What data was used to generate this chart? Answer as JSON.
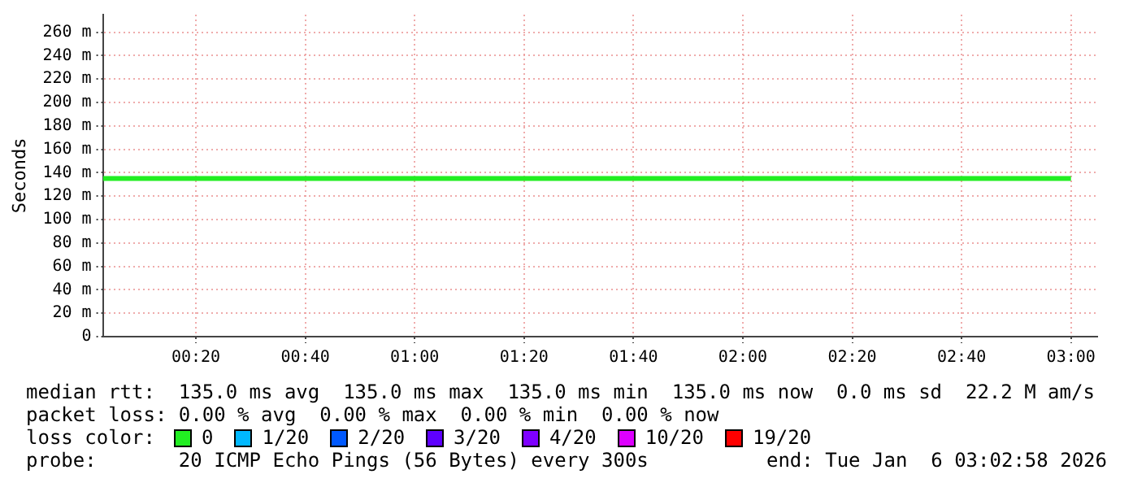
{
  "chart_data": {
    "type": "line",
    "ylabel": "Seconds",
    "x": [
      0.05,
      3.0
    ],
    "xlim": [
      0.05,
      3.08
    ],
    "xticks": [
      {
        "value": 0.3333,
        "label": "00:20"
      },
      {
        "value": 0.6667,
        "label": "00:40"
      },
      {
        "value": 1,
        "label": "01:00"
      },
      {
        "value": 1.3333,
        "label": "01:20"
      },
      {
        "value": 1.6667,
        "label": "01:40"
      },
      {
        "value": 2,
        "label": "02:00"
      },
      {
        "value": 2.3333,
        "label": "02:20"
      },
      {
        "value": 2.6667,
        "label": "02:40"
      },
      {
        "value": 3,
        "label": "03:00"
      }
    ],
    "ylim": [
      0,
      275
    ],
    "yticks": [
      0,
      {
        "value": 20,
        "label": "20 m"
      },
      {
        "value": 40,
        "label": "40 m"
      },
      {
        "value": 60,
        "label": "60 m"
      },
      {
        "value": 80,
        "label": "80 m"
      },
      {
        "value": 100,
        "label": "100 m"
      },
      {
        "value": 120,
        "label": "120 m"
      },
      {
        "value": 140,
        "label": "140 m"
      },
      {
        "value": 160,
        "label": "160 m"
      },
      {
        "value": 180,
        "label": "180 m"
      },
      {
        "value": 200,
        "label": "200 m"
      },
      {
        "value": 220,
        "label": "220 m"
      },
      {
        "value": 240,
        "label": "240 m"
      },
      {
        "value": 260,
        "label": "260 m"
      }
    ],
    "series": [
      {
        "name": "0",
        "color": "#22ee22",
        "values": [
          135,
          135
        ]
      },
      {
        "name": "1/20",
        "color": "#00b8ff",
        "values": [
          null,
          null
        ]
      },
      {
        "name": "2/20",
        "color": "#0059ff",
        "values": [
          null,
          null
        ]
      },
      {
        "name": "3/20",
        "color": "#5e00ff",
        "values": [
          null,
          null
        ]
      },
      {
        "name": "4/20",
        "color": "#7e00ff",
        "values": [
          null,
          null
        ]
      },
      {
        "name": "10/20",
        "color": "#dd00ff",
        "values": [
          null,
          null
        ]
      },
      {
        "name": "19/20",
        "color": "#ff0000",
        "values": [
          null,
          null
        ]
      }
    ],
    "grid": true,
    "legend": "bottom",
    "legend_title": "loss color:",
    "annotations": [
      "median rtt:  135.0 ms avg  135.0 ms max  135.0 ms min  135.0 ms now  0.0 ms sd  22.2 M am/s",
      "packet loss: 0.00 % avg  0.00 % max  0.00 % min  0.00 % now",
      "probe:       20 ICMP Echo Pings (56 Bytes) every 300s",
      "end: Tue Jan  6 03:02:58 2026"
    ]
  }
}
